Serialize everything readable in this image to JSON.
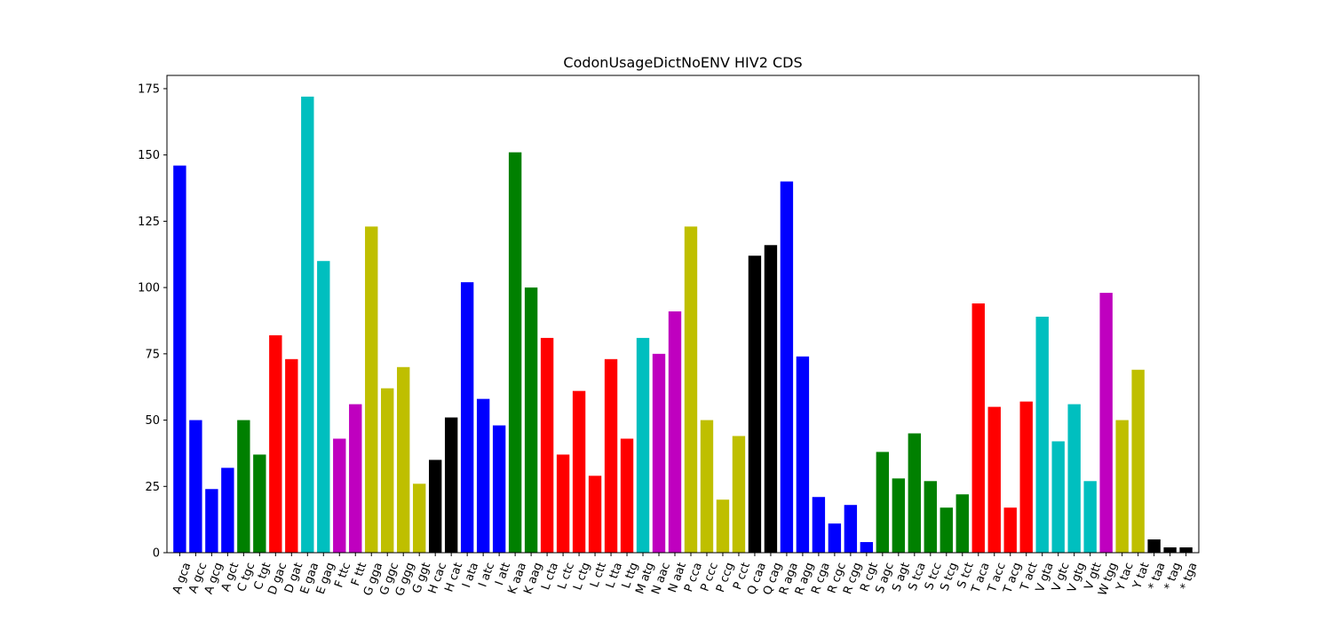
{
  "chart_data": {
    "type": "bar",
    "title": "CodonUsageDictNoENV HIV2 CDS",
    "xlabel": "",
    "ylabel": "",
    "ylim": [
      0,
      180
    ],
    "yticks": [
      0,
      25,
      50,
      75,
      100,
      125,
      150,
      175
    ],
    "grid": false,
    "legend": "none",
    "categories": [
      "A gca",
      "A gcc",
      "A gcg",
      "A gct",
      "C tgc",
      "C tgt",
      "D gac",
      "D gat",
      "E gaa",
      "E gag",
      "F ttc",
      "F ttt",
      "G gga",
      "G ggc",
      "G ggg",
      "G ggt",
      "H cac",
      "H cat",
      "I ata",
      "I atc",
      "I att",
      "K aaa",
      "K aag",
      "L cta",
      "L ctc",
      "L ctg",
      "L ctt",
      "L tta",
      "L ttg",
      "M atg",
      "N aac",
      "N aat",
      "P cca",
      "P ccc",
      "P ccg",
      "P cct",
      "Q caa",
      "Q cag",
      "R aga",
      "R agg",
      "R cga",
      "R cgc",
      "R cgg",
      "R cgt",
      "S agc",
      "S agt",
      "S tca",
      "S tcc",
      "S tcg",
      "S tct",
      "T aca",
      "T acc",
      "T acg",
      "T act",
      "V gta",
      "V gtc",
      "V gtg",
      "V gtt",
      "W tgg",
      "Y tac",
      "Y tat",
      "* taa",
      "* tag",
      "* tga"
    ],
    "values": [
      146,
      50,
      24,
      32,
      50,
      37,
      82,
      73,
      172,
      110,
      43,
      56,
      123,
      62,
      70,
      26,
      35,
      51,
      102,
      58,
      48,
      151,
      100,
      81,
      37,
      61,
      29,
      73,
      43,
      81,
      75,
      91,
      123,
      50,
      20,
      44,
      112,
      116,
      140,
      74,
      21,
      11,
      18,
      4,
      38,
      28,
      45,
      27,
      17,
      22,
      94,
      55,
      17,
      57,
      89,
      42,
      56,
      27,
      98,
      50,
      69,
      5,
      2,
      2
    ],
    "colors": [
      "#0000ff",
      "#0000ff",
      "#0000ff",
      "#0000ff",
      "#008000",
      "#008000",
      "#ff0000",
      "#ff0000",
      "#00bfbf",
      "#00bfbf",
      "#bf00bf",
      "#bf00bf",
      "#bfbf00",
      "#bfbf00",
      "#bfbf00",
      "#bfbf00",
      "#000000",
      "#000000",
      "#0000ff",
      "#0000ff",
      "#0000ff",
      "#008000",
      "#008000",
      "#ff0000",
      "#ff0000",
      "#ff0000",
      "#ff0000",
      "#ff0000",
      "#ff0000",
      "#00bfbf",
      "#bf00bf",
      "#bf00bf",
      "#bfbf00",
      "#bfbf00",
      "#bfbf00",
      "#bfbf00",
      "#000000",
      "#000000",
      "#0000ff",
      "#0000ff",
      "#0000ff",
      "#0000ff",
      "#0000ff",
      "#0000ff",
      "#008000",
      "#008000",
      "#008000",
      "#008000",
      "#008000",
      "#008000",
      "#ff0000",
      "#ff0000",
      "#ff0000",
      "#ff0000",
      "#00bfbf",
      "#00bfbf",
      "#00bfbf",
      "#00bfbf",
      "#bf00bf",
      "#bfbf00",
      "#bfbf00",
      "#000000",
      "#000000",
      "#000000"
    ]
  }
}
